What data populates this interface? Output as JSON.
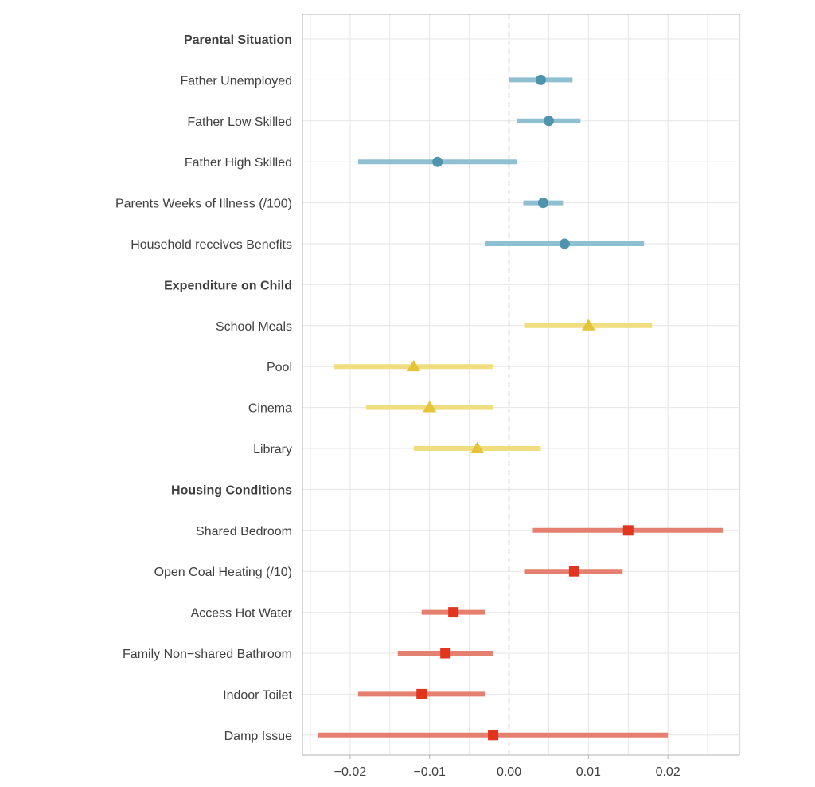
{
  "chart_data": {
    "type": "forest",
    "title": "",
    "xlabel": "",
    "ylabel": "",
    "xlim": [
      -0.026,
      0.029
    ],
    "xticks": [
      -0.02,
      -0.01,
      0.0,
      0.01,
      0.02
    ],
    "xtick_labels": [
      "−0.02",
      "−0.01",
      "0.00",
      "0.01",
      "0.02"
    ],
    "reference_line": 0,
    "grid": true,
    "groups": [
      {
        "name": "Parental Situation",
        "color": "#4f93ac",
        "ci_color": "#8fc0d1",
        "marker": "circle",
        "items": [
          {
            "label": "Father Unemployed",
            "estimate": 0.004,
            "lower": 0.0,
            "upper": 0.008
          },
          {
            "label": "Father Low Skilled",
            "estimate": 0.005,
            "lower": 0.001,
            "upper": 0.009
          },
          {
            "label": "Father High Skilled",
            "estimate": -0.009,
            "lower": -0.019,
            "upper": 0.001
          },
          {
            "label": "Parents  Weeks of Illness (/100)",
            "estimate": 0.0043,
            "lower": 0.0018,
            "upper": 0.0069
          },
          {
            "label": "Household receives Benefits",
            "estimate": 0.007,
            "lower": -0.003,
            "upper": 0.017
          }
        ]
      },
      {
        "name": "Expenditure on Child",
        "color": "#e5c43a",
        "ci_color": "#efdd80",
        "marker": "triangle",
        "items": [
          {
            "label": "School Meals",
            "estimate": 0.01,
            "lower": 0.002,
            "upper": 0.018
          },
          {
            "label": "Pool",
            "estimate": -0.012,
            "lower": -0.022,
            "upper": -0.002
          },
          {
            "label": "Cinema",
            "estimate": -0.01,
            "lower": -0.018,
            "upper": -0.002
          },
          {
            "label": "Library",
            "estimate": -0.004,
            "lower": -0.012,
            "upper": 0.004
          }
        ]
      },
      {
        "name": "Housing Conditions",
        "color": "#e0361f",
        "ci_color": "#e57f6f",
        "marker": "square",
        "items": [
          {
            "label": "Shared Bedroom",
            "estimate": 0.015,
            "lower": 0.003,
            "upper": 0.027
          },
          {
            "label": "Open Coal Heating (/10)",
            "estimate": 0.0082,
            "lower": 0.002,
            "upper": 0.0143
          },
          {
            "label": "Access Hot Water",
            "estimate": -0.007,
            "lower": -0.011,
            "upper": -0.003
          },
          {
            "label": "Family Non−shared Bathroom",
            "estimate": -0.008,
            "lower": -0.014,
            "upper": -0.002
          },
          {
            "label": "Indoor Toilet",
            "estimate": -0.011,
            "lower": -0.019,
            "upper": -0.003
          },
          {
            "label": "Damp Issue",
            "estimate": -0.002,
            "lower": -0.024,
            "upper": 0.02
          }
        ]
      }
    ]
  }
}
